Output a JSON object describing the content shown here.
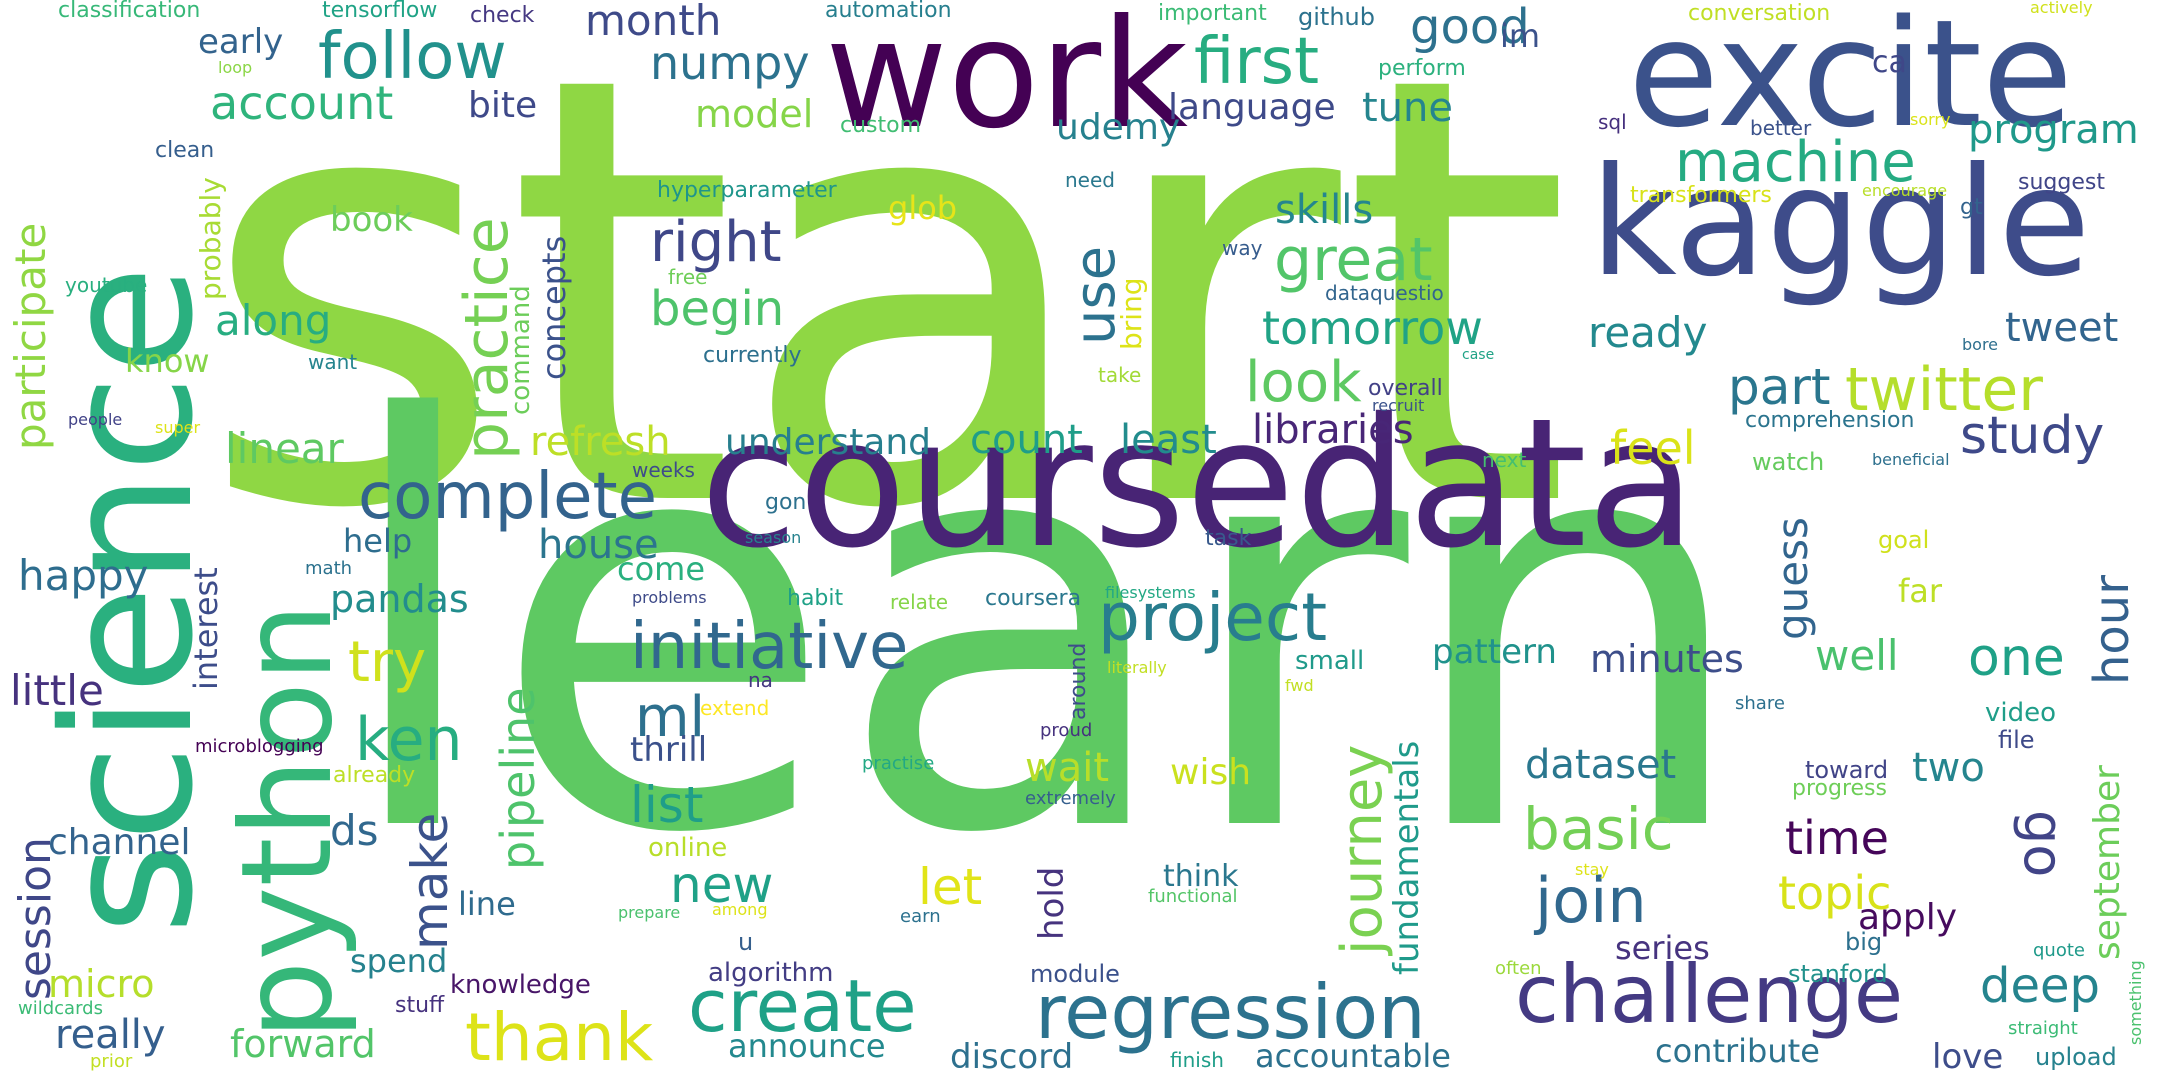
{
  "words": [
    {
      "text": "start",
      "color": "#8fd744"
    },
    {
      "text": "learn",
      "color": "#5ec962"
    },
    {
      "text": "science",
      "color": "#2ab07f"
    },
    {
      "text": "work",
      "color": "#440154"
    },
    {
      "text": "excite",
      "color": "#3b528b"
    },
    {
      "text": "kaggle",
      "color": "#3e4c8a"
    },
    {
      "text": "coursedata",
      "color": "#482475"
    },
    {
      "text": "python",
      "color": "#35b779"
    },
    {
      "text": "follow",
      "color": "#21918c"
    },
    {
      "text": "first",
      "color": "#27ad81"
    },
    {
      "text": "good",
      "color": "#2d718e"
    },
    {
      "text": "practice",
      "color": "#75d054"
    },
    {
      "text": "complete",
      "color": "#33638d"
    },
    {
      "text": "initiative",
      "color": "#31688e"
    },
    {
      "text": "project",
      "color": "#287d8e"
    },
    {
      "text": "challenge",
      "color": "#443a83"
    },
    {
      "text": "regression",
      "color": "#2c728e"
    },
    {
      "text": "create",
      "color": "#1fa187"
    },
    {
      "text": "thank",
      "color": "#dde318"
    },
    {
      "text": "twitter",
      "color": "#b5de2b"
    },
    {
      "text": "machine",
      "color": "#25ab82"
    },
    {
      "text": "great",
      "color": "#52c569"
    },
    {
      "text": "right",
      "color": "#3f4788"
    },
    {
      "text": "begin",
      "color": "#4ec36b"
    },
    {
      "text": "look",
      "color": "#5ec962"
    },
    {
      "text": "tomorrow",
      "color": "#20a386"
    },
    {
      "text": "use",
      "color": "#2c728e"
    },
    {
      "text": "join",
      "color": "#31688e"
    },
    {
      "text": "basic",
      "color": "#73d056"
    },
    {
      "text": "study",
      "color": "#3e4989"
    },
    {
      "text": "account",
      "color": "#2fb47c"
    },
    {
      "text": "numpy",
      "color": "#2c728e"
    },
    {
      "text": "month",
      "color": "#3e4a89"
    },
    {
      "text": "try",
      "color": "#d0e11c"
    },
    {
      "text": "ken",
      "color": "#27ad81"
    },
    {
      "text": "ml",
      "color": "#2d708e"
    },
    {
      "text": "list",
      "color": "#1f9e89"
    },
    {
      "text": "new",
      "color": "#1fa187"
    },
    {
      "text": "house",
      "color": "#2b758e"
    },
    {
      "text": "pandas",
      "color": "#228d8d"
    },
    {
      "text": "happy",
      "color": "#2e6d8e"
    },
    {
      "text": "little",
      "color": "#46327e"
    },
    {
      "text": "session",
      "color": "#3f4788"
    },
    {
      "text": "micro",
      "color": "#b5de2b"
    },
    {
      "text": "really",
      "color": "#355f8d"
    },
    {
      "text": "forward",
      "color": "#52c569"
    },
    {
      "text": "channel",
      "color": "#33638d"
    },
    {
      "text": "participate",
      "color": "#90d743"
    },
    {
      "text": "journey",
      "color": "#7ad151"
    },
    {
      "text": "pipeline",
      "color": "#4ec36b"
    },
    {
      "text": "make",
      "color": "#3b528b"
    },
    {
      "text": "ds",
      "color": "#31688e"
    },
    {
      "text": "along",
      "color": "#27ad81"
    },
    {
      "text": "linear",
      "color": "#5ec962"
    },
    {
      "text": "refresh",
      "color": "#bddf26"
    },
    {
      "text": "understand",
      "color": "#277f8e"
    },
    {
      "text": "count",
      "color": "#1f9e89"
    },
    {
      "text": "least",
      "color": "#228c8d"
    },
    {
      "text": "libraries",
      "color": "#482677"
    },
    {
      "text": "feel",
      "color": "#dae319"
    },
    {
      "text": "part",
      "color": "#2a768e"
    },
    {
      "text": "tweet",
      "color": "#32658e"
    },
    {
      "text": "ready",
      "color": "#23898e"
    },
    {
      "text": "skills",
      "color": "#24868e"
    },
    {
      "text": "tune",
      "color": "#25858e"
    },
    {
      "text": "language",
      "color": "#3e4a89"
    },
    {
      "text": "udemy",
      "color": "#26818e"
    },
    {
      "text": "program",
      "color": "#1f998a"
    },
    {
      "text": "dataset",
      "color": "#2a778e"
    },
    {
      "text": "wait",
      "color": "#b8de29"
    },
    {
      "text": "wish",
      "color": "#cae11f"
    },
    {
      "text": "time",
      "color": "#450559"
    },
    {
      "text": "topic",
      "color": "#d8e219"
    },
    {
      "text": "apply",
      "color": "#460b5e"
    },
    {
      "text": "two",
      "color": "#25858e"
    },
    {
      "text": "one",
      "color": "#1fa187"
    },
    {
      "text": "deep",
      "color": "#25848e"
    },
    {
      "text": "hour",
      "color": "#34618d"
    },
    {
      "text": "go",
      "color": "#414487"
    },
    {
      "text": "september",
      "color": "#6ccd5a"
    },
    {
      "text": "guess",
      "color": "#32658e"
    },
    {
      "text": "well",
      "color": "#4ac16d"
    },
    {
      "text": "minutes",
      "color": "#3d4e8a"
    },
    {
      "text": "pattern",
      "color": "#20928c"
    },
    {
      "text": "fundamentals",
      "color": "#1f9a8a"
    },
    {
      "text": "series",
      "color": "#46337f"
    },
    {
      "text": "let",
      "color": "#e1e418"
    },
    {
      "text": "hold",
      "color": "#46337e"
    },
    {
      "text": "think",
      "color": "#2a778e"
    },
    {
      "text": "accountable",
      "color": "#2c718e"
    },
    {
      "text": "contribute",
      "color": "#2c728e"
    },
    {
      "text": "discord",
      "color": "#2d708e"
    },
    {
      "text": "love",
      "color": "#3d4d8a"
    },
    {
      "text": "announce",
      "color": "#23898e"
    },
    {
      "text": "algorithm",
      "color": "#433d84"
    },
    {
      "text": "module",
      "color": "#3b518b"
    },
    {
      "text": "knowledge",
      "color": "#481668"
    },
    {
      "text": "spend",
      "color": "#26828e"
    },
    {
      "text": "line",
      "color": "#2f6b8e"
    },
    {
      "text": "thrill",
      "color": "#3b518b"
    },
    {
      "text": "help",
      "color": "#2e6d8e"
    },
    {
      "text": "come",
      "color": "#2ab07f"
    },
    {
      "text": "interest",
      "color": "#3d4d8a"
    },
    {
      "text": "book",
      "color": "#6ccd5a"
    },
    {
      "text": "know",
      "color": "#86d549"
    },
    {
      "text": "bite",
      "color": "#3e4989"
    },
    {
      "text": "early",
      "color": "#33638d"
    },
    {
      "text": "model",
      "color": "#86d549"
    },
    {
      "text": "glob",
      "color": "#e7e419"
    },
    {
      "text": "concepts",
      "color": "#3b528b"
    },
    {
      "text": "command",
      "color": "#6ccd5a"
    },
    {
      "text": "bring",
      "color": "#dde318"
    },
    {
      "text": "probably",
      "color": "#a8db34"
    },
    {
      "text": "classification",
      "color": "#37b878"
    },
    {
      "text": "tensorflow",
      "color": "#20a386"
    },
    {
      "text": "check",
      "color": "#453882"
    },
    {
      "text": "automation",
      "color": "#277f8e"
    },
    {
      "text": "important",
      "color": "#3bbb75"
    },
    {
      "text": "github",
      "color": "#2c728e"
    },
    {
      "text": "im",
      "color": "#3b528b"
    },
    {
      "text": "conversation",
      "color": "#c0df25"
    },
    {
      "text": "actively",
      "color": "#d0e11c"
    },
    {
      "text": "ca",
      "color": "#3f4788"
    },
    {
      "text": "perform",
      "color": "#2cb17e"
    },
    {
      "text": "custom",
      "color": "#40bd72"
    },
    {
      "text": "loop",
      "color": "#8bd646"
    },
    {
      "text": "clean",
      "color": "#355e8d"
    },
    {
      "text": "sql",
      "color": "#46307e"
    },
    {
      "text": "better",
      "color": "#3b528b"
    },
    {
      "text": "sorry",
      "color": "#dae319"
    },
    {
      "text": "hyperparameter",
      "color": "#1f958b"
    },
    {
      "text": "need",
      "color": "#2a788e"
    },
    {
      "text": "transformers",
      "color": "#d8e219"
    },
    {
      "text": "encourage",
      "color": "#b8de29"
    },
    {
      "text": "suggest",
      "color": "#404588"
    },
    {
      "text": "gt",
      "color": "#33638d"
    },
    {
      "text": "way",
      "color": "#365c8d"
    },
    {
      "text": "dataquestio",
      "color": "#32658e"
    },
    {
      "text": "free",
      "color": "#6ece58"
    },
    {
      "text": "youtube",
      "color": "#29af7f"
    },
    {
      "text": "want",
      "color": "#25848e"
    },
    {
      "text": "currently",
      "color": "#2d708e"
    },
    {
      "text": "take",
      "color": "#a2da37"
    },
    {
      "text": "overall",
      "color": "#424186"
    },
    {
      "text": "recruit",
      "color": "#3b528b"
    },
    {
      "text": "case",
      "color": "#20a386"
    },
    {
      "text": "bore",
      "color": "#2e6f8e"
    },
    {
      "text": "comprehension",
      "color": "#2b748e"
    },
    {
      "text": "watch",
      "color": "#65cb5e"
    },
    {
      "text": "beneficial",
      "color": "#2d708e"
    },
    {
      "text": "people",
      "color": "#414287"
    },
    {
      "text": "super",
      "color": "#dde318"
    },
    {
      "text": "weeks",
      "color": "#3e4c8a"
    },
    {
      "text": "next",
      "color": "#44bf70"
    },
    {
      "text": "gon",
      "color": "#2d718e"
    },
    {
      "text": "season",
      "color": "#26828e"
    },
    {
      "text": "task",
      "color": "#38598c"
    },
    {
      "text": "goal",
      "color": "#d0e11c"
    },
    {
      "text": "far",
      "color": "#bddf26"
    },
    {
      "text": "math",
      "color": "#2c728e"
    },
    {
      "text": "problems",
      "color": "#3e4a89"
    },
    {
      "text": "habit",
      "color": "#1fa187"
    },
    {
      "text": "relate",
      "color": "#86d549"
    },
    {
      "text": "coursera",
      "color": "#2a778e"
    },
    {
      "text": "filesystems",
      "color": "#22a884"
    },
    {
      "text": "small",
      "color": "#1f9a8a"
    },
    {
      "text": "na",
      "color": "#453781"
    },
    {
      "text": "literally",
      "color": "#c2df23"
    },
    {
      "text": "fwd",
      "color": "#c2df23"
    },
    {
      "text": "around",
      "color": "#3e4c8a"
    },
    {
      "text": "extend",
      "color": "#fde725"
    },
    {
      "text": "microblogging",
      "color": "#440154"
    },
    {
      "text": "already",
      "color": "#bddf26"
    },
    {
      "text": "practise",
      "color": "#22a884"
    },
    {
      "text": "proud",
      "color": "#46327e"
    },
    {
      "text": "share",
      "color": "#2d708e"
    },
    {
      "text": "video",
      "color": "#1f9e89"
    },
    {
      "text": "file",
      "color": "#3e4a89"
    },
    {
      "text": "extremely",
      "color": "#355f8d"
    },
    {
      "text": "toward",
      "color": "#414487"
    },
    {
      "text": "progress",
      "color": "#6ece58"
    },
    {
      "text": "online",
      "color": "#b8de29"
    },
    {
      "text": "functional",
      "color": "#54c568"
    },
    {
      "text": "stay",
      "color": "#dde318"
    },
    {
      "text": "prepare",
      "color": "#4ac16d"
    },
    {
      "text": "among",
      "color": "#dde318"
    },
    {
      "text": "earn",
      "color": "#2c718e"
    },
    {
      "text": "u",
      "color": "#355f8d"
    },
    {
      "text": "big",
      "color": "#2d708e"
    },
    {
      "text": "quote",
      "color": "#1f9a8a"
    },
    {
      "text": "stanford",
      "color": "#21918c"
    },
    {
      "text": "often",
      "color": "#9bd93c"
    },
    {
      "text": "straight",
      "color": "#3bbb75"
    },
    {
      "text": "something",
      "color": "#4ac16d"
    },
    {
      "text": "upload",
      "color": "#26828e"
    },
    {
      "text": "finish",
      "color": "#1f9e89"
    },
    {
      "text": "stuff",
      "color": "#46327e"
    },
    {
      "text": "wildcards",
      "color": "#3bbb75"
    },
    {
      "text": "prior",
      "color": "#c2df23"
    }
  ]
}
